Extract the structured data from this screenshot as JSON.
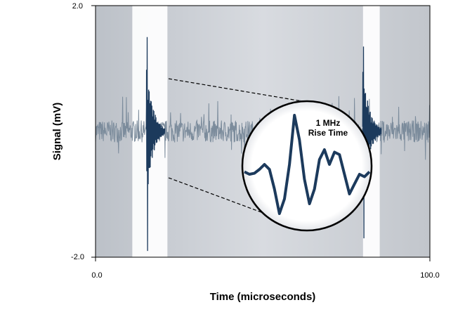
{
  "chart_data": {
    "type": "line",
    "title": "",
    "xlabel": "Time (microseconds)",
    "ylabel": "Signal (mV)",
    "xlim": [
      0.0,
      100.0
    ],
    "ylim": [
      -2.0,
      2.0
    ],
    "x_tick_labels": [
      "0.0",
      "100.0"
    ],
    "y_tick_labels": [
      "2.0",
      "-2.0"
    ],
    "grid": false,
    "legend": "none",
    "colors": {
      "background": "#d4d7dc",
      "highlight": "#ffffff",
      "noise": "#7c8c9c",
      "burst": "#1c3a5c",
      "zoom_trace": "#1c3a5c"
    },
    "highlighted_regions": [
      [
        11.0,
        21.5
      ],
      [
        80.0,
        85.0
      ]
    ],
    "events": [
      {
        "x": 15.5,
        "peak_positive": 1.5,
        "peak_negative": -1.9
      },
      {
        "x": 80.2,
        "peak_positive": 1.35,
        "peak_negative": -1.7
      }
    ],
    "callout": {
      "line1": "1 MHz",
      "line2": "Rise Time"
    },
    "inset_trace": [
      -0.05,
      -0.1,
      -0.08,
      0.0,
      0.1,
      0.0,
      -0.4,
      -0.9,
      -0.6,
      0.1,
      1.1,
      0.6,
      -0.2,
      -0.7,
      -0.4,
      0.2,
      0.4,
      0.1,
      0.35,
      0.3,
      -0.1,
      -0.5,
      -0.3,
      -0.1,
      -0.15,
      -0.05
    ]
  }
}
